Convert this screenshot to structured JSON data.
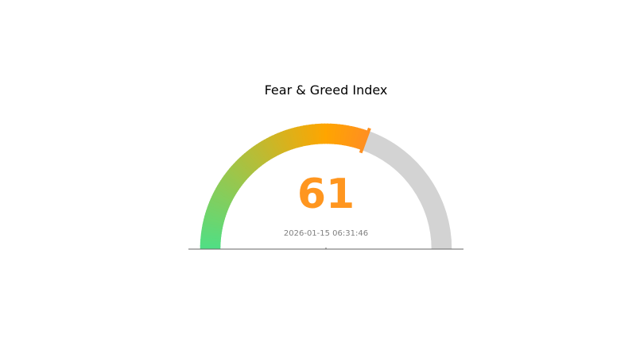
{
  "chart_data": {
    "type": "gauge",
    "title": "Fear & Greed Index",
    "value": 61,
    "value_label": "61",
    "range": [
      0,
      100
    ],
    "timestamp": "2026-01-15 06:31:46",
    "colors": {
      "start": "#4fdf85",
      "middle": "#ffa500",
      "value": "#ff9020",
      "track": "#d3d3d3",
      "value_text": "#ff961f",
      "baseline": "#666666",
      "timestamp_text": "#808080"
    }
  }
}
